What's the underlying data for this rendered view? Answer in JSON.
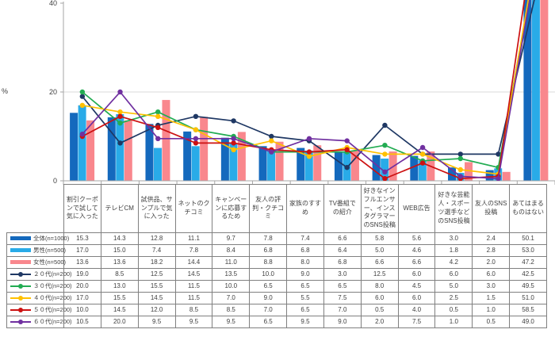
{
  "page": {
    "background": "#ffffff"
  },
  "chart_data": {
    "type": "combo-bar-line",
    "title": "",
    "unit": "%",
    "ylim": [
      0,
      40
    ],
    "y_ticks": [
      0,
      20,
      40
    ],
    "gridlines": [
      20
    ],
    "grid_on": true,
    "legend_position": "table-left-column",
    "note": "values above 40 are clipped at plot top",
    "categories": [
      "割引クーポンで試して気に入った",
      "テレビCM",
      "試供品、サンプルで気に入った",
      "ネットのクチコミ",
      "キャンペーンに応募するため",
      "友人の評判・クチコミ",
      "家族のすすめ",
      "TV番組での紹介",
      "好きなインフルエンサー、インスタグラマーのSNS投稿",
      "WEB広告",
      "好きな芸能人・スポーツ選手などのSNS投稿",
      "友人のSNS投稿",
      "あてはまるものはない"
    ],
    "series": [
      {
        "name": "全体(n=1000)",
        "type": "bar",
        "color": "#1469BD",
        "values": [
          15.3,
          14.3,
          12.8,
          11.1,
          9.7,
          7.8,
          7.4,
          6.6,
          5.8,
          5.6,
          3.0,
          2.4,
          50.1
        ]
      },
      {
        "name": "男性(n=500)",
        "type": "bar",
        "color": "#29ABE8",
        "values": [
          17.0,
          15.0,
          7.4,
          7.8,
          8.4,
          6.8,
          6.8,
          6.4,
          5.0,
          4.6,
          1.8,
          2.8,
          53.0
        ]
      },
      {
        "name": "女性(n=500)",
        "type": "bar",
        "color": "#F9878D",
        "values": [
          13.6,
          13.6,
          18.2,
          14.4,
          11.0,
          8.8,
          8.0,
          6.8,
          6.6,
          6.6,
          4.2,
          2.0,
          47.2
        ]
      },
      {
        "name": "２０代(n=200)",
        "type": "line",
        "color": "#1F3864",
        "values": [
          19.0,
          8.5,
          12.5,
          14.5,
          13.5,
          10.0,
          9.0,
          3.0,
          12.5,
          6.0,
          6.0,
          6.0,
          42.5
        ]
      },
      {
        "name": "３０代(n=200)",
        "type": "line",
        "color": "#22AC52",
        "values": [
          20.0,
          13.0,
          15.5,
          11.5,
          10.0,
          6.5,
          6.5,
          6.5,
          8.0,
          4.5,
          5.0,
          3.0,
          49.5
        ]
      },
      {
        "name": "４０代(n=200)",
        "type": "line",
        "color": "#FFC000",
        "values": [
          17.0,
          15.5,
          14.5,
          11.5,
          7.0,
          9.0,
          5.5,
          7.5,
          6.0,
          6.0,
          2.5,
          1.5,
          51.0
        ]
      },
      {
        "name": "５０代(n=200)",
        "type": "line",
        "color": "#CC1111",
        "values": [
          10.0,
          14.5,
          12.0,
          8.5,
          8.5,
          7.0,
          6.5,
          7.0,
          0.5,
          4.0,
          0.5,
          1.0,
          58.5
        ]
      },
      {
        "name": "６０代(n=200)",
        "type": "line",
        "color": "#7030A0",
        "values": [
          10.5,
          20.0,
          9.5,
          9.5,
          9.5,
          6.5,
          9.5,
          9.0,
          2.0,
          7.5,
          1.0,
          0.5,
          49.0
        ]
      }
    ]
  },
  "colors": {
    "axis": "#A6A6A6",
    "grid": "#D9D9D9",
    "text": "#404040",
    "table_border": "#808080"
  }
}
